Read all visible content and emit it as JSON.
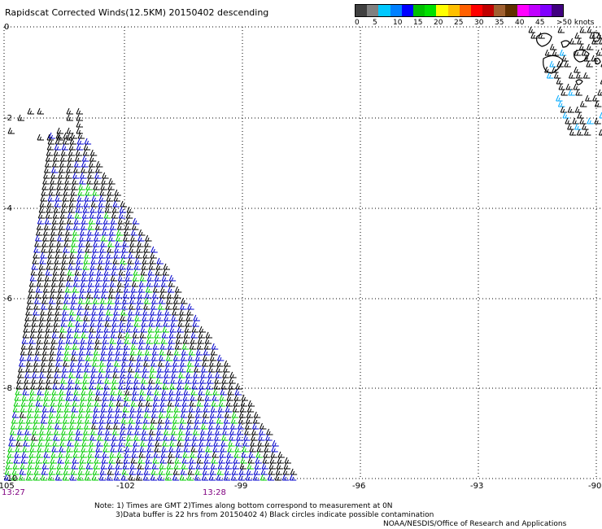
{
  "title": "Rapidscat Corrected Winds(12.5KM) 20150402 descending",
  "legend": {
    "unit": "knots",
    "colors": [
      "#404040",
      "#808080",
      "#00c8ff",
      "#0080ff",
      "#0000ff",
      "#00c000",
      "#00e000",
      "#ffff00",
      "#ffc000",
      "#ff6000",
      "#ff0000",
      "#c00000",
      "#a06030",
      "#603000",
      "#ff00ff",
      "#c000ff",
      "#8000ff",
      "#400080"
    ],
    "labels": [
      "0",
      "5",
      "10",
      "15",
      "20",
      "25",
      "30",
      "35",
      "40",
      "45",
      ">50 knots"
    ]
  },
  "map": {
    "lat_labels": [
      "0",
      "-2",
      "-4",
      "-6",
      "-8",
      "-10"
    ],
    "lon_labels": [
      "-105",
      "-102",
      "-99",
      "-96",
      "-93",
      "-90"
    ],
    "times": {
      "left": "13:27",
      "mid": "13:28"
    }
  },
  "notes": {
    "line1": "Note: 1) Times are GMT 2)Times along bottom correspond to measurement at 0N",
    "line2": "3)Data buffer is 22 hrs from 20150402 4) Black circles indicate possible contamination",
    "line3": "NOAA/NESDIS/Office of Research and Applications"
  }
}
